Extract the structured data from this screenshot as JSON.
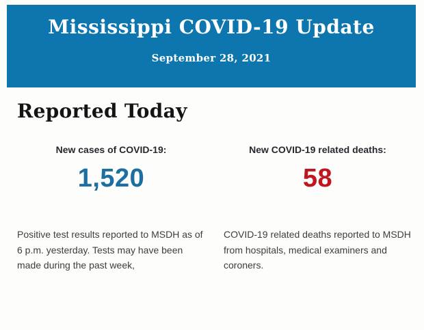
{
  "header": {
    "title": "Mississippi COVID-19 Update",
    "date": "September 28, 2021",
    "background_color": "#0d76ae",
    "text_color": "#fdfefd"
  },
  "main": {
    "heading": "Reported Today",
    "stats": [
      {
        "label": "New cases of COVID-19:",
        "value": "1,520",
        "value_color": "#1b6fa1",
        "description": "Positive test results reported to MSDH as of 6 p.m. yesterday. Tests may have been made during the past week,"
      },
      {
        "label": "New COVID-19 related deaths:",
        "value": "58",
        "value_color": "#c0161f",
        "description": "COVID-19 related deaths reported to MSDH from hospitals, medical examiners and coroners."
      }
    ]
  }
}
